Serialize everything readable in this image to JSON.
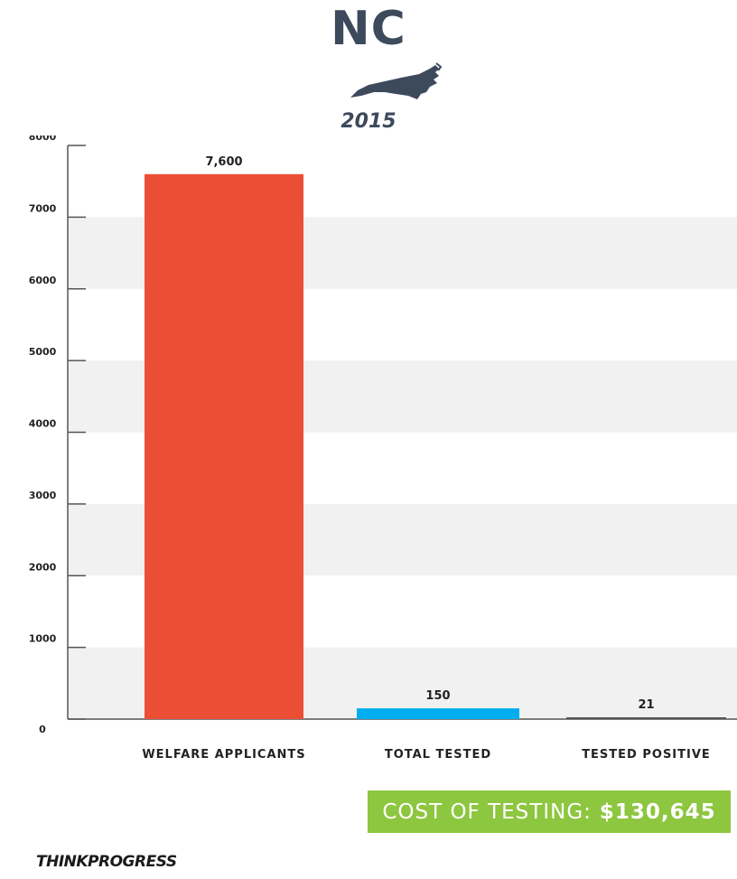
{
  "header": {
    "title": "NC",
    "year": "2015",
    "map_icon": "north-carolina-map-icon"
  },
  "chart_data": {
    "type": "bar",
    "categories": [
      "WELFARE APPLICANTS",
      "TOTAL TESTED",
      "TESTED POSITIVE"
    ],
    "values": [
      7600,
      150,
      21
    ],
    "value_labels": [
      "7,600",
      "150",
      "21"
    ],
    "yticks": [
      0,
      1000,
      2000,
      3000,
      4000,
      5000,
      6000,
      7000,
      8000
    ],
    "ylim": [
      0,
      8000
    ],
    "grid": "alternating bands",
    "colors": [
      "#ec4e35",
      "#00aeef",
      "#555555"
    ],
    "band_color": "#f1f1f1",
    "axis_color": "#555555"
  },
  "cost": {
    "label": "COST OF TESTING:",
    "amount": "$130,645",
    "color": "#8dc63f"
  },
  "footer": {
    "logo": "THINKPROGRESS"
  }
}
